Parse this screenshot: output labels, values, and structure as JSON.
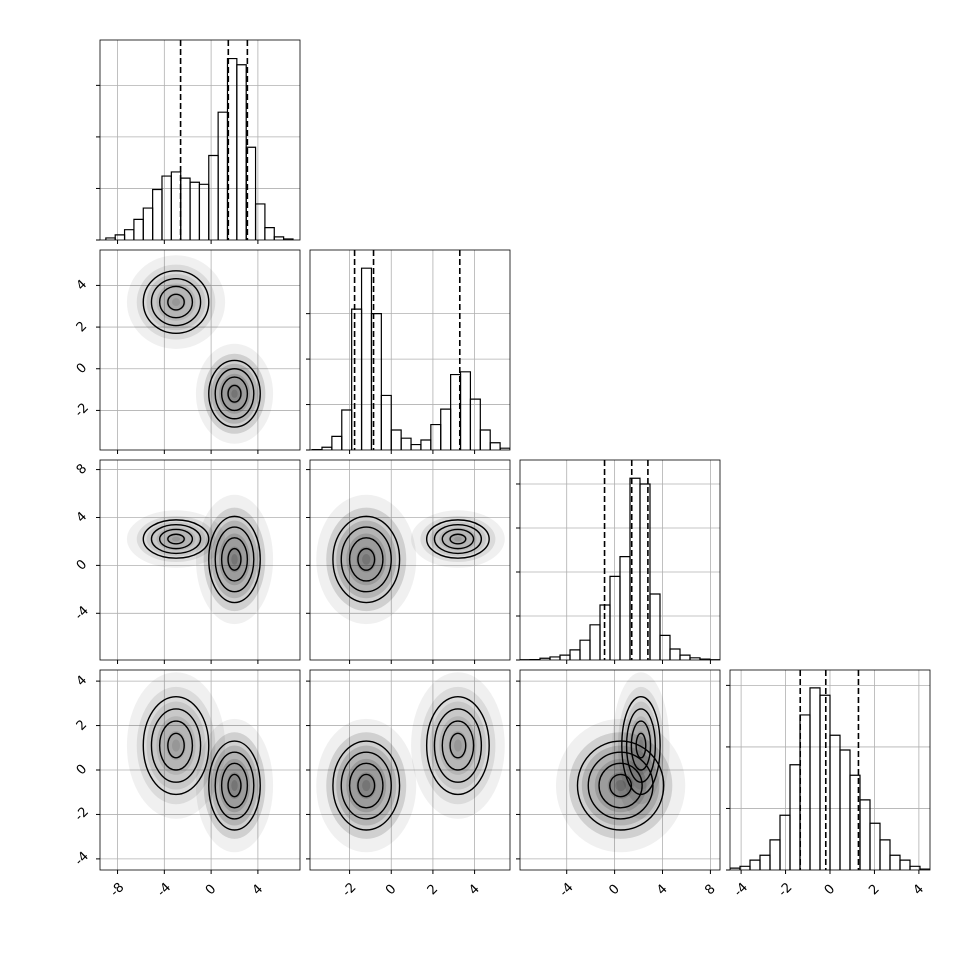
{
  "chart_data": {
    "type": "corner",
    "grid": true,
    "color": "#000000",
    "dims": [
      {
        "lim": [
          -9.5,
          7.6
        ],
        "ticks": [
          -8,
          -4,
          0,
          4
        ],
        "quantiles": [
          -2.61,
          1.47,
          3.1
        ],
        "hist": {
          "bins": [
            -9,
            -8.2,
            -7.4,
            -6.6,
            -5.8,
            -5,
            -4.2,
            -3.4,
            -2.6,
            -1.8,
            -1,
            -0.2,
            0.6,
            1.4,
            2.2,
            3,
            3.8,
            4.6,
            5.4,
            6.2,
            7
          ],
          "counts": [
            10,
            25,
            50,
            100,
            155,
            245,
            310,
            330,
            300,
            280,
            270,
            410,
            620,
            880,
            850,
            450,
            175,
            60,
            15,
            5
          ],
          "ylim": [
            0,
            970
          ],
          "yticks": [
            0,
            250,
            500,
            750
          ]
        }
      },
      {
        "lim": [
          -3.9,
          5.7
        ],
        "ticks": [
          -2,
          0,
          2,
          4
        ],
        "quantiles": [
          -1.76,
          -0.85,
          3.29
        ],
        "hist": {
          "bins": [
            -3.8,
            -3.325,
            -2.85,
            -2.375,
            -1.9,
            -1.425,
            -0.95,
            -0.475,
            0,
            0.475,
            0.95,
            1.425,
            1.9,
            2.375,
            2.85,
            3.325,
            3.8,
            4.275,
            4.75,
            5.225,
            5.7
          ],
          "counts": [
            5,
            30,
            150,
            440,
            1550,
            2000,
            1500,
            600,
            220,
            130,
            60,
            110,
            280,
            450,
            830,
            860,
            560,
            220,
            80,
            20
          ],
          "ylim": [
            0,
            2200
          ],
          "yticks": [
            0,
            500,
            1000,
            1500
          ]
        }
      },
      {
        "lim": [
          -7.9,
          8.8
        ],
        "ticks": [
          -4,
          0,
          4,
          8
        ],
        "quantiles": [
          -0.84,
          1.43,
          2.78
        ],
        "hist": {
          "bins": [
            -7.9,
            -7.065,
            -6.23,
            -5.395,
            -4.56,
            -3.725,
            -2.89,
            -2.055,
            -1.22,
            -0.385,
            0.45,
            1.285,
            2.12,
            2.955,
            3.79,
            4.625,
            5.46,
            6.295,
            7.13,
            7.965,
            8.8
          ],
          "counts": [
            5,
            10,
            40,
            70,
            110,
            230,
            450,
            800,
            1250,
            1900,
            2350,
            4130,
            4000,
            1500,
            560,
            250,
            110,
            50,
            20,
            5
          ],
          "ylim": [
            0,
            4545
          ],
          "yticks": [
            0,
            1000,
            2000,
            3000,
            4000
          ]
        }
      },
      {
        "lim": [
          -4.5,
          4.5
        ],
        "ticks": [
          -4,
          -2,
          0,
          2,
          4
        ],
        "quantiles": [
          -1.34,
          -0.19,
          1.28
        ],
        "hist": {
          "bins": [
            -4.5,
            -4.05,
            -3.6,
            -3.15,
            -2.7,
            -2.25,
            -1.8,
            -1.35,
            -0.9,
            -0.45,
            0,
            0.45,
            0.9,
            1.35,
            1.8,
            2.25,
            2.7,
            3.15,
            3.6,
            4.05,
            4.5
          ],
          "counts": [
            30,
            60,
            160,
            240,
            490,
            890,
            1710,
            2520,
            2960,
            2840,
            2190,
            1950,
            1540,
            1140,
            760,
            490,
            240,
            160,
            60,
            15
          ],
          "ylim": [
            0,
            3250
          ],
          "yticks": [
            0,
            1000,
            2000,
            3000
          ]
        }
      }
    ],
    "components": [
      {
        "weight": 0.3,
        "mean": [
          -3,
          3.2,
          2.2,
          1.1
        ],
        "sd": [
          1.4,
          0.75,
          0.8,
          1.1
        ]
      },
      {
        "weight": 0.7,
        "mean": [
          2,
          -1.2,
          0.5,
          -0.7
        ],
        "sd": [
          1.1,
          0.8,
          1.8,
          1.0
        ]
      }
    ]
  }
}
